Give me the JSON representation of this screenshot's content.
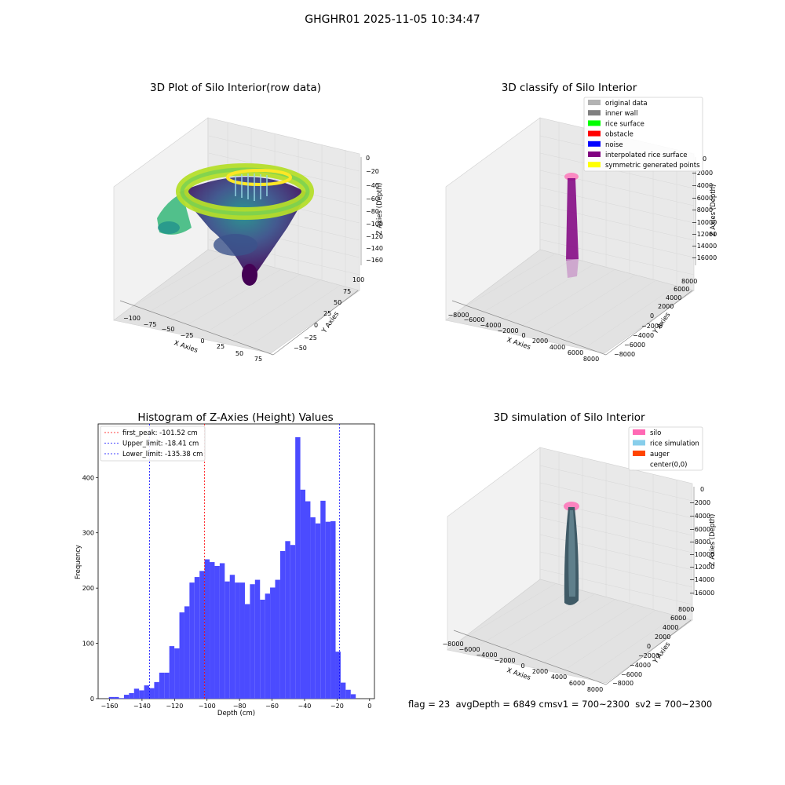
{
  "suptitle": "GHGHR01 2025-11-05 10:34:47",
  "footer": {
    "flag": "flag = 23",
    "avg": "avgDepth = 6849 cmsv1 = 700~2300",
    "sv2": "sv2 = 700~2300"
  },
  "chart_data": [
    {
      "type": "scatter",
      "title": "3D Plot of Silo Interior(row data)",
      "xlabel": "X Axies",
      "ylabel": "Y Axies",
      "zlabel": "Z Axies (Depth)",
      "xticks": [
        "−100",
        "−75",
        "−50",
        "−25",
        "0",
        "25",
        "50",
        "75"
      ],
      "yticks": [
        "−50",
        "−25",
        "0",
        "25",
        "50",
        "75",
        "100"
      ],
      "zticks": [
        "0",
        "−20",
        "−40",
        "−60",
        "−80",
        "−100",
        "−120",
        "−140",
        "−160"
      ],
      "colormap": "viridis",
      "grid": true
    },
    {
      "type": "scatter",
      "title": "3D classify of Silo Interior",
      "xlabel": "X Axies",
      "ylabel": "Y Axies",
      "zlabel": "Z Axies (Depth)",
      "xticks": [
        "−8000",
        "−6000",
        "−4000",
        "−2000",
        "0",
        "2000",
        "4000",
        "6000",
        "8000"
      ],
      "yticks": [
        "−8000",
        "−6000",
        "−4000",
        "−2000",
        "0",
        "2000",
        "4000",
        "6000",
        "8000"
      ],
      "zticks": [
        "0",
        "−2000",
        "−4000",
        "−6000",
        "−8000",
        "−10000",
        "−12000",
        "−14000",
        "−16000"
      ],
      "legend_position": "top-right",
      "legend": [
        {
          "label": "original data",
          "color": "#b3b3b3"
        },
        {
          "label": "inner wall",
          "color": "#808080"
        },
        {
          "label": "rice surface",
          "color": "#00ff00"
        },
        {
          "label": "obstacle",
          "color": "#ff0000"
        },
        {
          "label": "noise",
          "color": "#0000ff"
        },
        {
          "label": "interpolated rice surface",
          "color": "#800080"
        },
        {
          "label": "symmetric generated points",
          "color": "#ffff00"
        }
      ],
      "grid": true
    },
    {
      "type": "bar",
      "title": "Histogram of Z-Axies (Height) Values",
      "xlabel": "Depth (cm)",
      "ylabel": "Frequency",
      "xlim": [
        -167,
        3
      ],
      "ylim": [
        0,
        497
      ],
      "xticks": [
        -160,
        -140,
        -120,
        -100,
        -80,
        -60,
        -40,
        -20,
        0
      ],
      "yticks": [
        0,
        100,
        200,
        300,
        400
      ],
      "bin_width": 3.1,
      "bins": [
        {
          "x": -160.4,
          "value": 3
        },
        {
          "x": -157.3,
          "value": 3
        },
        {
          "x": -154.2,
          "value": 1
        },
        {
          "x": -151.1,
          "value": 7
        },
        {
          "x": -148.0,
          "value": 10
        },
        {
          "x": -144.9,
          "value": 18
        },
        {
          "x": -141.8,
          "value": 15
        },
        {
          "x": -138.7,
          "value": 24
        },
        {
          "x": -135.6,
          "value": 19
        },
        {
          "x": -132.5,
          "value": 30
        },
        {
          "x": -129.4,
          "value": 47
        },
        {
          "x": -126.3,
          "value": 47
        },
        {
          "x": -123.2,
          "value": 95
        },
        {
          "x": -120.1,
          "value": 91
        },
        {
          "x": -117.0,
          "value": 156
        },
        {
          "x": -113.9,
          "value": 167
        },
        {
          "x": -110.8,
          "value": 210
        },
        {
          "x": -107.7,
          "value": 220
        },
        {
          "x": -104.6,
          "value": 231
        },
        {
          "x": -101.5,
          "value": 252
        },
        {
          "x": -98.4,
          "value": 247
        },
        {
          "x": -95.3,
          "value": 240
        },
        {
          "x": -92.2,
          "value": 245
        },
        {
          "x": -89.1,
          "value": 212
        },
        {
          "x": -86.0,
          "value": 224
        },
        {
          "x": -82.9,
          "value": 210
        },
        {
          "x": -79.8,
          "value": 210
        },
        {
          "x": -76.7,
          "value": 171
        },
        {
          "x": -73.6,
          "value": 207
        },
        {
          "x": -70.5,
          "value": 215
        },
        {
          "x": -67.4,
          "value": 179
        },
        {
          "x": -64.3,
          "value": 190
        },
        {
          "x": -61.2,
          "value": 201
        },
        {
          "x": -58.1,
          "value": 215
        },
        {
          "x": -55.0,
          "value": 267
        },
        {
          "x": -51.9,
          "value": 285
        },
        {
          "x": -48.8,
          "value": 278
        },
        {
          "x": -45.7,
          "value": 473
        },
        {
          "x": -42.6,
          "value": 378
        },
        {
          "x": -39.5,
          "value": 357
        },
        {
          "x": -36.4,
          "value": 328
        },
        {
          "x": -33.3,
          "value": 317
        },
        {
          "x": -30.2,
          "value": 358
        },
        {
          "x": -27.1,
          "value": 320
        },
        {
          "x": -24.0,
          "value": 321
        },
        {
          "x": -20.9,
          "value": 85
        },
        {
          "x": -17.8,
          "value": 29
        },
        {
          "x": -14.7,
          "value": 16
        },
        {
          "x": -11.6,
          "value": 8
        }
      ],
      "bar_color": "#4b4bff",
      "vlines": [
        {
          "label": "first_peak: -101.52 cm",
          "x": -101.52,
          "color": "#ff0000"
        },
        {
          "label": "Upper_limit: -18.41 cm",
          "x": -18.41,
          "color": "#0000ff"
        },
        {
          "label": "Lower_limit: -135.38 cm",
          "x": -135.38,
          "color": "#0000ff"
        }
      ],
      "legend_position": "top-left"
    },
    {
      "type": "scatter",
      "title": "3D simulation of Silo Interior",
      "xlabel": "X Axies",
      "ylabel": "Y Axies",
      "zlabel": "Z Axies (Depth)",
      "xticks": [
        "−8000",
        "−6000",
        "−4000",
        "−2000",
        "0",
        "2000",
        "4000",
        "6000",
        "8000"
      ],
      "yticks": [
        "−8000",
        "−6000",
        "−4000",
        "−2000",
        "0",
        "2000",
        "4000",
        "6000",
        "8000"
      ],
      "zticks": [
        "0",
        "−2000",
        "−4000",
        "−6000",
        "−8000",
        "−10000",
        "−12000",
        "−14000",
        "−16000"
      ],
      "legend_position": "top-right",
      "legend": [
        {
          "label": "silo",
          "color": "#ff69b4"
        },
        {
          "label": "rice simulation",
          "color": "#87ceeb"
        },
        {
          "label": "auger",
          "color": "#ff4500"
        },
        {
          "label": "center(0,0)",
          "color": ""
        }
      ],
      "grid": true
    }
  ]
}
